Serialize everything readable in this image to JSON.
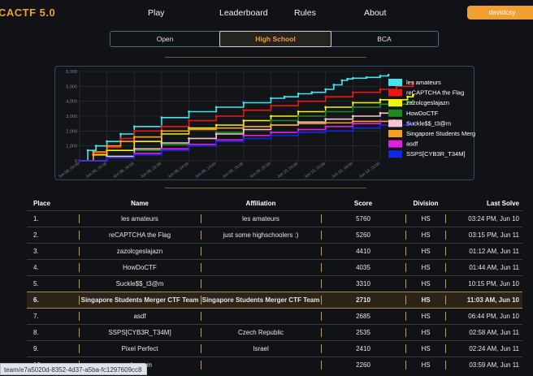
{
  "nav": {
    "brand": "CACTF 5.0",
    "items": [
      "Play",
      "Leaderboard",
      "Rules",
      "About"
    ],
    "user": "davidcsy"
  },
  "division_tabs": [
    {
      "label": "Open",
      "active": false
    },
    {
      "label": "High School",
      "active": true
    },
    {
      "label": "BCA",
      "active": false
    }
  ],
  "chart_data": {
    "type": "line",
    "x_tick_labels": [
      "Jun 08, 04:00",
      "Jun 08, 10:00",
      "Jun 08, 16:00",
      "Jun 08, 22:00",
      "Jun 09, 04:00",
      "Jun 09, 10:00",
      "Jun 09, 16:00",
      "Jun 09, 22:00",
      "Jun 10, 04:00",
      "Jun 10, 10:00",
      "Jun 10, 16:00",
      "Jun 10, 22:00"
    ],
    "y_tick_labels": [
      "0",
      "1,000",
      "2,000",
      "3,000",
      "4,000",
      "5,000",
      "6,000"
    ],
    "ylim": [
      0,
      6000
    ],
    "legend_position": "right",
    "series": [
      {
        "name": "les amateurs",
        "color": "#3ee6f0",
        "x": [
          0,
          0.3,
          0.6,
          1,
          1.5,
          2,
          3,
          4,
          5,
          6,
          7,
          7.5,
          8,
          8.5,
          9,
          9.3,
          9.6,
          9.8,
          10,
          10.5,
          11,
          11.3
        ],
        "y": [
          0,
          700,
          1000,
          1300,
          1800,
          2300,
          2900,
          3300,
          3600,
          3900,
          4200,
          4300,
          4500,
          4600,
          4800,
          5100,
          5400,
          5500,
          5550,
          5600,
          5700,
          5760
        ]
      },
      {
        "name": "reCAPTCHA the Flag",
        "color": "#e81818",
        "x": [
          0,
          0.5,
          1,
          1.5,
          2,
          3,
          4,
          5,
          6,
          7,
          8,
          9,
          10,
          11,
          11.6,
          12.2
        ],
        "y": [
          0,
          500,
          900,
          1500,
          2000,
          2300,
          2700,
          3000,
          3400,
          3700,
          4000,
          4300,
          4600,
          4800,
          5000,
          5260
        ]
      },
      {
        "name": "zazolcgeslajazn",
        "color": "#f2f20f",
        "x": [
          0,
          0.5,
          1,
          2,
          3,
          4,
          5,
          6,
          7,
          8,
          9,
          10,
          11,
          12,
          12.2
        ],
        "y": [
          0,
          400,
          700,
          1300,
          1800,
          2200,
          2400,
          2700,
          3000,
          3300,
          3600,
          3900,
          4100,
          4300,
          4410
        ]
      },
      {
        "name": "HowDoCTF",
        "color": "#1e8a1e",
        "x": [
          0,
          1,
          2,
          3,
          4,
          5,
          6,
          7,
          8,
          9,
          10,
          11,
          12,
          12.2
        ],
        "y": [
          0,
          300,
          700,
          1100,
          1500,
          1900,
          2300,
          2700,
          3000,
          3300,
          3600,
          3800,
          3950,
          4035
        ]
      },
      {
        "name": "Suckle$$_t3@m",
        "color": "#f4c4d2",
        "x": [
          0,
          1,
          2,
          3,
          4,
          5,
          6,
          7,
          8,
          9,
          10,
          11,
          11.4
        ],
        "y": [
          0,
          300,
          800,
          1200,
          1500,
          1800,
          2100,
          2400,
          2600,
          2800,
          3000,
          3200,
          3310
        ]
      },
      {
        "name": "Singapore Students Merger CTF Team",
        "color": "#f4a020",
        "x": [
          0,
          0.5,
          1,
          1.5,
          2,
          3,
          4,
          5,
          6,
          7,
          8,
          9,
          10,
          11.5
        ],
        "y": [
          0,
          600,
          1000,
          1300,
          1600,
          2000,
          2100,
          2200,
          2300,
          2400,
          2500,
          2550,
          2650,
          2710
        ]
      },
      {
        "name": "asdf",
        "color": "#e020e0",
        "x": [
          0,
          1,
          2,
          3,
          4,
          5,
          6,
          7,
          8,
          9,
          10,
          11
        ],
        "y": [
          0,
          200,
          500,
          800,
          1100,
          1400,
          1700,
          1900,
          2100,
          2300,
          2500,
          2685
        ]
      },
      {
        "name": "SSPS[CYB3R_T34M]",
        "color": "#1426e8",
        "x": [
          0,
          1,
          2,
          3,
          4,
          5,
          6,
          7,
          8,
          9,
          10,
          11,
          12,
          12.2
        ],
        "y": [
          0,
          200,
          400,
          700,
          1000,
          1300,
          1500,
          1700,
          1900,
          2000,
          2200,
          2400,
          2500,
          2535
        ]
      }
    ]
  },
  "leaderboard": {
    "headers": [
      "Place",
      "Name",
      "Affiliation",
      "Score",
      "Division",
      "Last Solve"
    ],
    "rows": [
      {
        "place": "1.",
        "name": "les amateurs",
        "affiliation": "les amateurs",
        "score": "5760",
        "division": "HS",
        "last_solve": "03:24 PM, Jun 10",
        "highlight": false
      },
      {
        "place": "2.",
        "name": "reCAPTCHA the Flag",
        "affiliation": "just some highschoolers :)",
        "score": "5260",
        "division": "HS",
        "last_solve": "03:15 PM, Jun 11",
        "highlight": false
      },
      {
        "place": "3.",
        "name": "zazolcgeslajazn",
        "affiliation": "",
        "score": "4410",
        "division": "HS",
        "last_solve": "01:12 AM, Jun 11",
        "highlight": false
      },
      {
        "place": "4.",
        "name": "HowDoCTF",
        "affiliation": "",
        "score": "4035",
        "division": "HS",
        "last_solve": "01:44 AM, Jun 11",
        "highlight": false
      },
      {
        "place": "5.",
        "name": "Suckle$$_t3@m",
        "affiliation": "",
        "score": "3310",
        "division": "HS",
        "last_solve": "10:15 PM, Jun 10",
        "highlight": false
      },
      {
        "place": "6.",
        "name": "Singapore Students Merger CTF Team",
        "affiliation": "Singapore Students Merger CTF Team",
        "score": "2710",
        "division": "HS",
        "last_solve": "11:03 AM, Jun 10",
        "highlight": true
      },
      {
        "place": "7.",
        "name": "asdf",
        "affiliation": "",
        "score": "2685",
        "division": "HS",
        "last_solve": "06:44 PM, Jun 10",
        "highlight": false
      },
      {
        "place": "8.",
        "name": "SSPS[CYB3R_T34M]",
        "affiliation": "Czech Republic",
        "score": "2535",
        "division": "HS",
        "last_solve": "02:58 AM, Jun 11",
        "highlight": false
      },
      {
        "place": "9.",
        "name": "Pixel Perfect",
        "affiliation": "Israel",
        "score": "2410",
        "division": "HS",
        "last_solve": "02:24 AM, Jun 11",
        "highlight": false
      },
      {
        "place": "10.",
        "name": "xls team",
        "affiliation": "",
        "score": "2260",
        "division": "HS",
        "last_solve": "03:59 AM, Jun 11",
        "highlight": false
      }
    ]
  },
  "status_bar": {
    "url": "team/e7a5020d-8352-4d37-a5ba-fc1297609cc8"
  }
}
